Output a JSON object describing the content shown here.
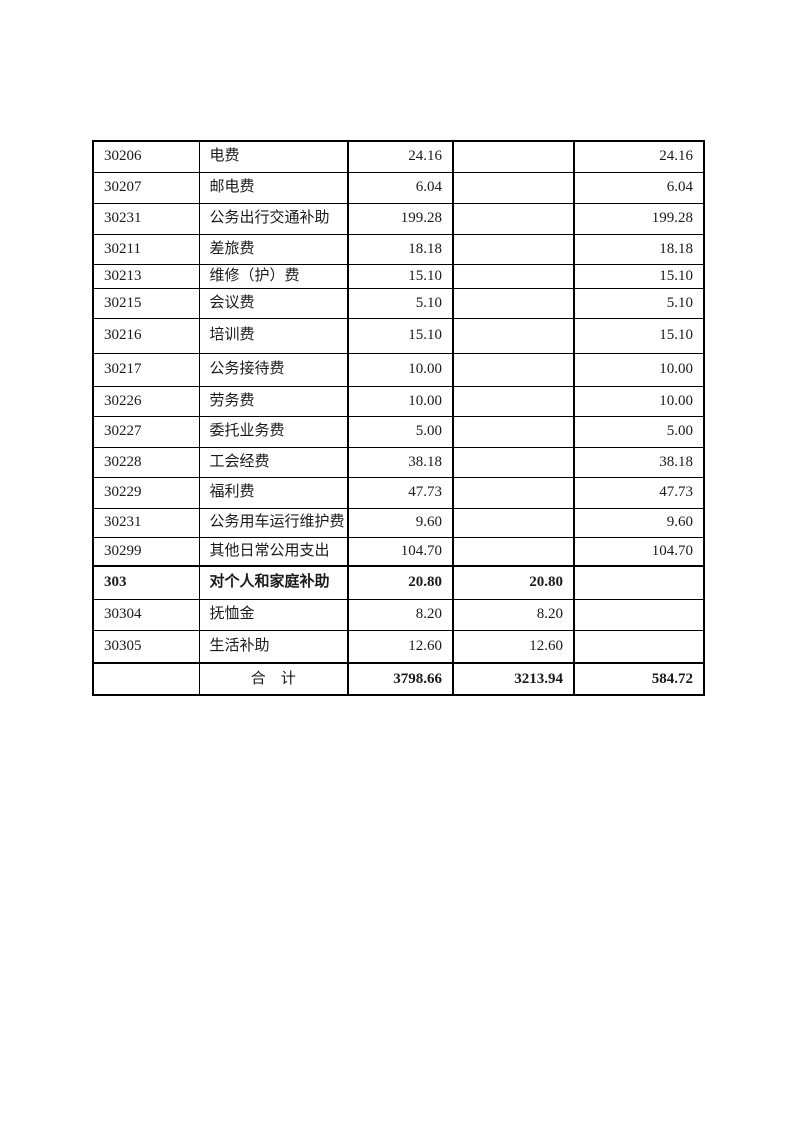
{
  "page": {
    "background_color": "#ffffff",
    "text_color": "#1a1a1a",
    "table_border_color": "#000000"
  },
  "table": {
    "columns": [
      {
        "key": "code",
        "role": "economic-classification-code",
        "align": "left"
      },
      {
        "key": "name",
        "role": "item-name",
        "align": "left"
      },
      {
        "key": "v1",
        "role": "amount-total",
        "align": "right"
      },
      {
        "key": "v2",
        "role": "amount-basic",
        "align": "right"
      },
      {
        "key": "v3",
        "role": "amount-project",
        "align": "right"
      }
    ],
    "rows": [
      {
        "code": "30206",
        "name": "电费",
        "v1": "24.16",
        "v2": "",
        "v3": "24.16",
        "style": "normal"
      },
      {
        "code": "30207",
        "name": "邮电费",
        "v1": "6.04",
        "v2": "",
        "v3": "6.04",
        "style": "normal"
      },
      {
        "code": "30231",
        "name": "公务出行交通补助",
        "v1": "199.28",
        "v2": "",
        "v3": "199.28",
        "style": "normal"
      },
      {
        "code": "30211",
        "name": "差旅费",
        "v1": "18.18",
        "v2": "",
        "v3": "18.18",
        "style": "normal"
      },
      {
        "code": "30213",
        "name": "维修（护）费",
        "v1": "15.10",
        "v2": "",
        "v3": "15.10",
        "style": "normal"
      },
      {
        "code": "30215",
        "name": "会议费",
        "v1": "5.10",
        "v2": "",
        "v3": "5.10",
        "style": "normal"
      },
      {
        "code": "30216",
        "name": "培训费",
        "v1": "15.10",
        "v2": "",
        "v3": "15.10",
        "style": "normal"
      },
      {
        "code": "30217",
        "name": "公务接待费",
        "v1": "10.00",
        "v2": "",
        "v3": "10.00",
        "style": "normal"
      },
      {
        "code": "30226",
        "name": "劳务费",
        "v1": "10.00",
        "v2": "",
        "v3": "10.00",
        "style": "normal"
      },
      {
        "code": "30227",
        "name": "委托业务费",
        "v1": "5.00",
        "v2": "",
        "v3": "5.00",
        "style": "normal"
      },
      {
        "code": "30228",
        "name": "工会经费",
        "v1": "38.18",
        "v2": "",
        "v3": "38.18",
        "style": "normal"
      },
      {
        "code": "30229",
        "name": "福利费",
        "v1": "47.73",
        "v2": "",
        "v3": "47.73",
        "style": "normal"
      },
      {
        "code": "30231",
        "name": "公务用车运行维护费",
        "v1": "9.60",
        "v2": "",
        "v3": "9.60",
        "style": "normal"
      },
      {
        "code": "30299",
        "name": "其他日常公用支出",
        "v1": "104.70",
        "v2": "",
        "v3": "104.70",
        "style": "normal"
      },
      {
        "code": "303",
        "name": "对个人和家庭补助",
        "v1": "20.80",
        "v2": "20.80",
        "v3": "",
        "style": "section"
      },
      {
        "code": "30304",
        "name": "抚恤金",
        "v1": "8.20",
        "v2": "8.20",
        "v3": "",
        "style": "normal"
      },
      {
        "code": "30305",
        "name": "生活补助",
        "v1": "12.60",
        "v2": "12.60",
        "v3": "",
        "style": "normal"
      },
      {
        "code": "",
        "name": "合　计",
        "v1": "3798.66",
        "v2": "3213.94",
        "v3": "584.72",
        "style": "total"
      }
    ]
  }
}
